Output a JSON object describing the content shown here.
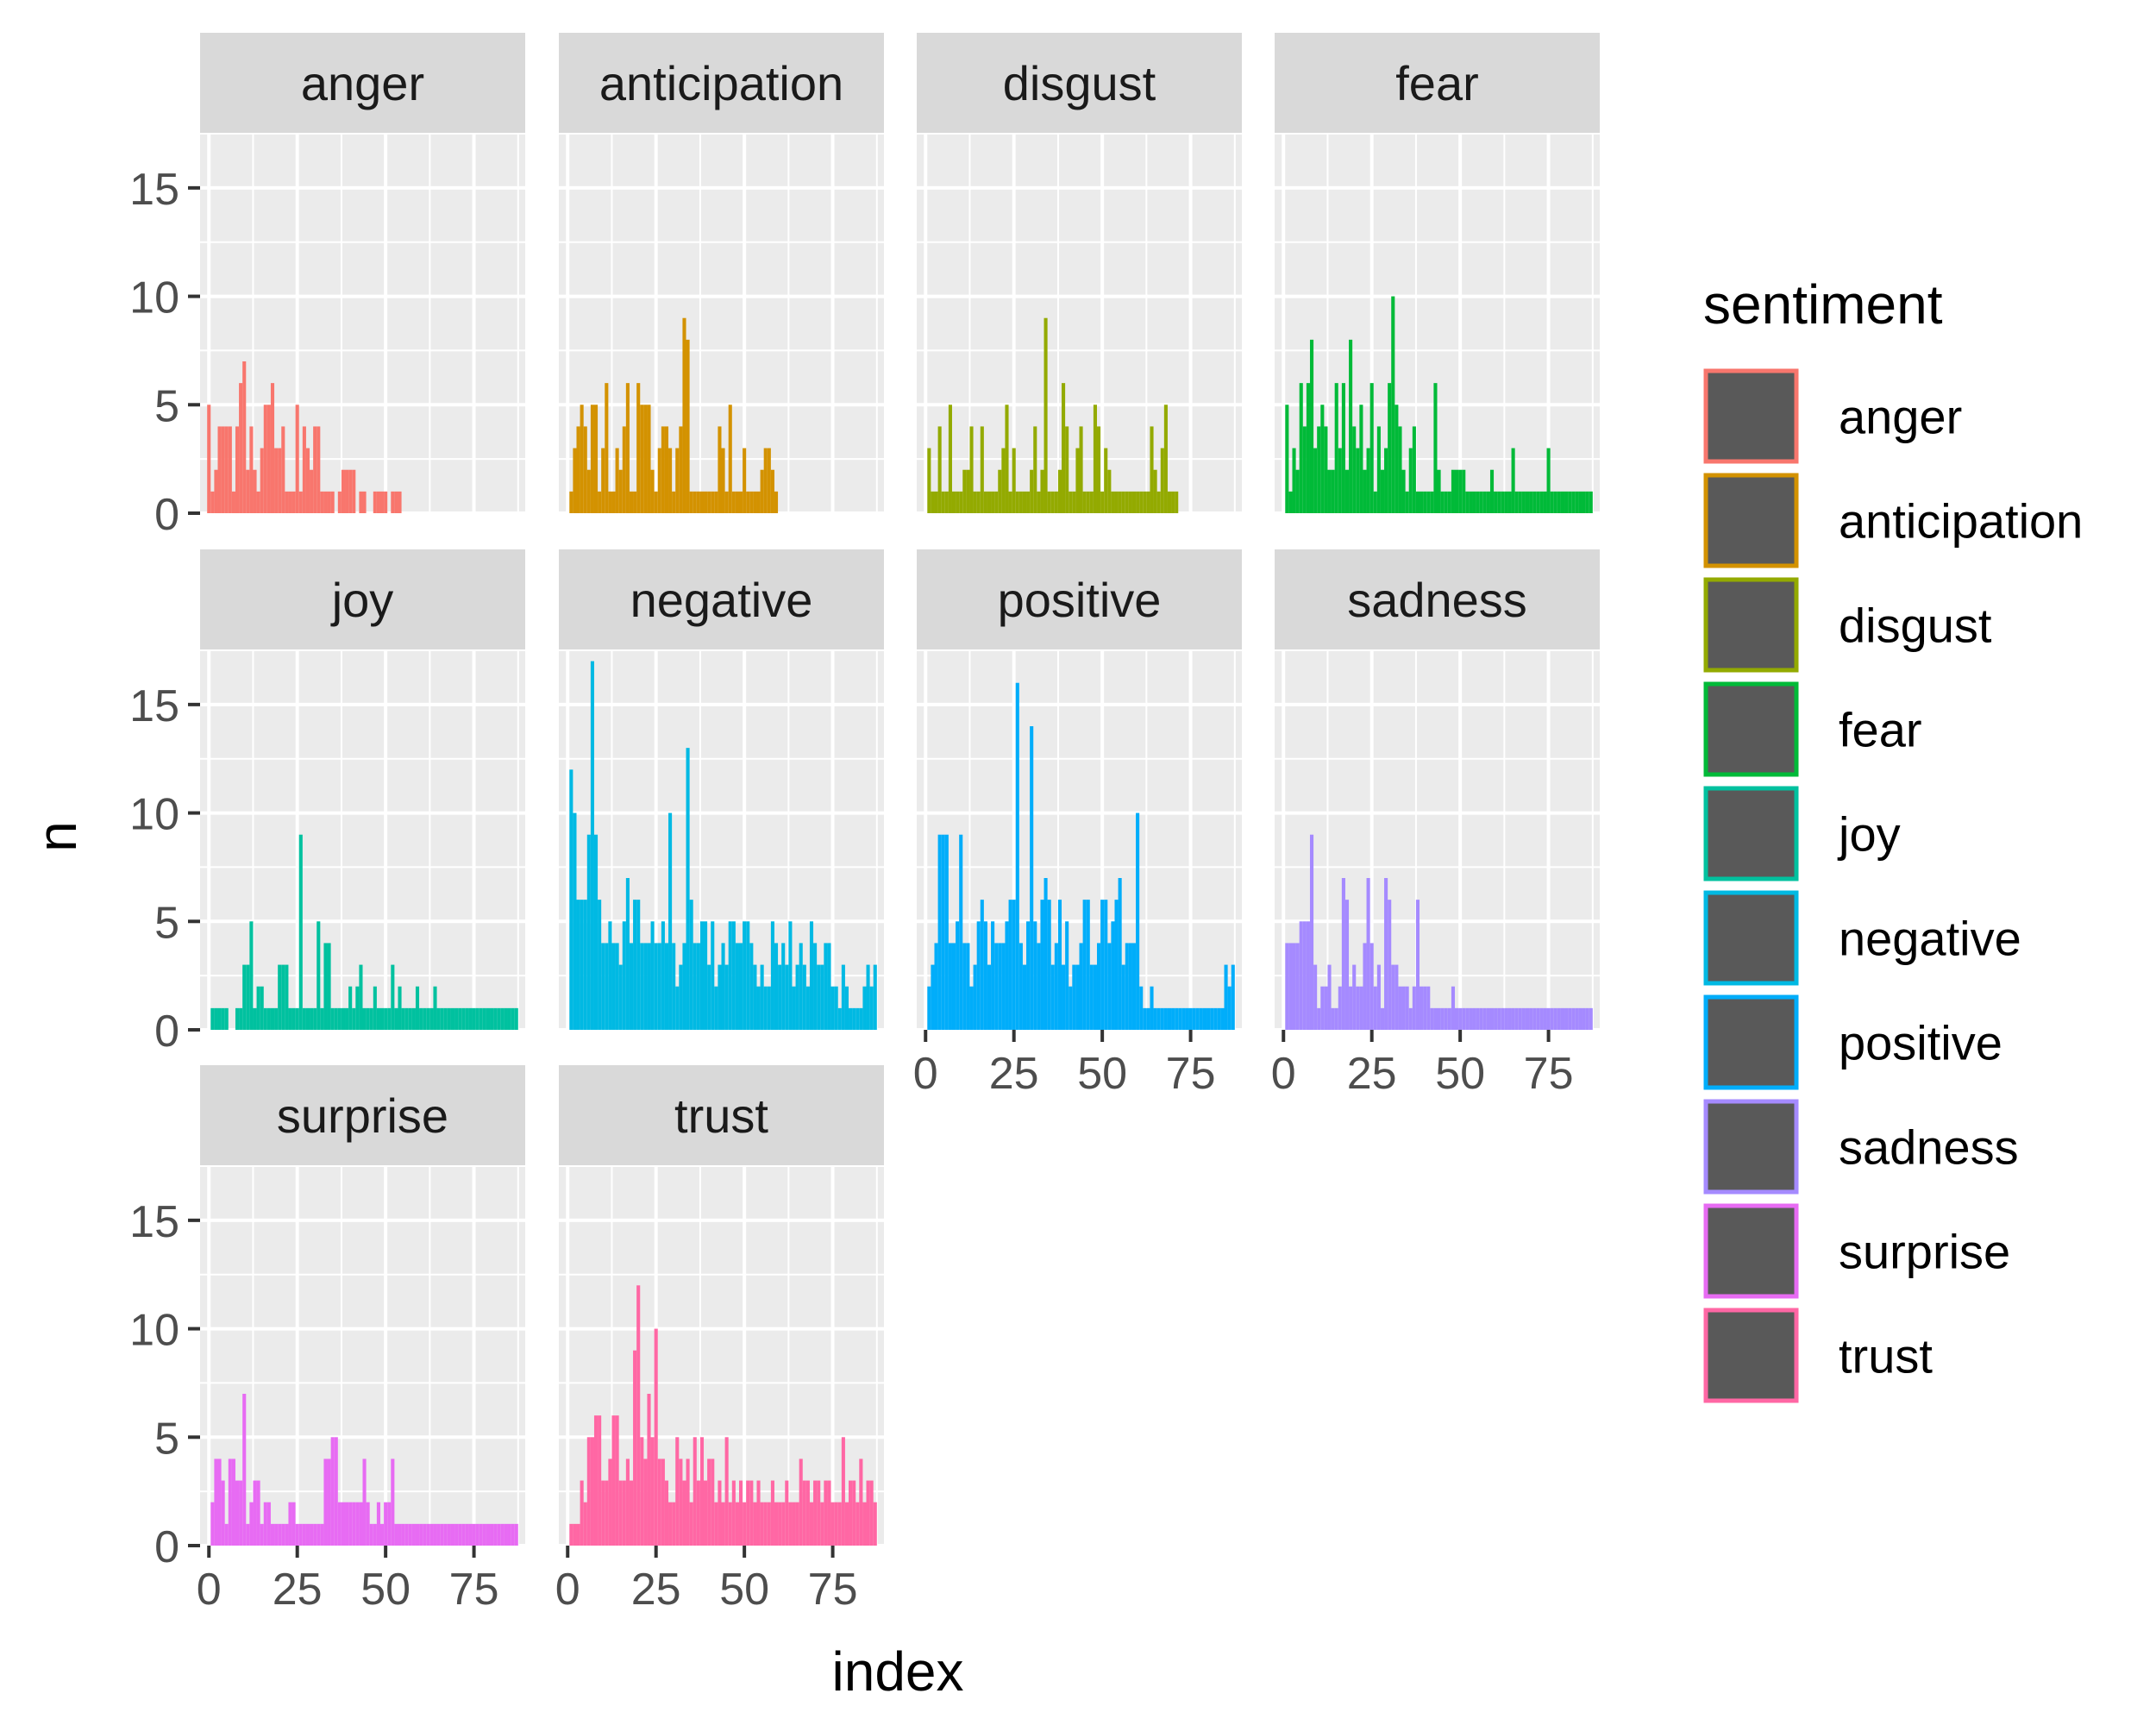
{
  "chart_data": {
    "type": "bar",
    "layout": "facet_wrap",
    "x_label": "index",
    "y_label": "n",
    "y_limits": [
      0,
      17.5
    ],
    "x_limits": [
      -2.5,
      89.5
    ],
    "y_ticks": [
      0,
      5,
      10,
      15
    ],
    "x_ticks": [
      0,
      25,
      50,
      75
    ],
    "legend": {
      "title": "sentiment",
      "position": "right",
      "fill": "#595959",
      "entries": [
        "anger",
        "anticipation",
        "disgust",
        "fear",
        "joy",
        "negative",
        "positive",
        "sadness",
        "surprise",
        "trust"
      ]
    },
    "panel_background": "#EBEBEB",
    "strip_background": "#D9D9D9",
    "gridlines": true,
    "series": [
      {
        "name": "anger",
        "color": "#F8766D",
        "values": [
          5,
          1,
          2,
          4,
          4,
          4,
          4,
          1,
          4,
          6,
          7,
          2,
          4,
          2,
          1,
          3,
          5,
          5,
          6,
          3,
          3,
          4,
          1,
          1,
          1,
          5,
          1,
          4,
          3,
          2,
          4,
          4,
          1,
          1,
          1,
          1,
          0,
          1,
          2,
          2,
          2,
          2,
          0,
          1,
          1,
          0,
          0,
          1,
          1,
          1,
          1,
          0,
          1,
          1,
          1,
          0,
          0,
          0,
          0,
          0,
          0,
          0,
          0,
          0,
          0,
          0,
          0,
          0,
          0,
          0,
          0,
          0,
          0,
          0,
          0,
          0,
          0,
          0,
          0,
          0,
          0,
          0,
          0,
          0,
          0,
          0,
          0,
          0
        ]
      },
      {
        "name": "anticipation",
        "color": "#D39200",
        "values": [
          0,
          1,
          3,
          4,
          5,
          4,
          2,
          5,
          5,
          1,
          3,
          6,
          1,
          1,
          3,
          2,
          4,
          6,
          1,
          1,
          6,
          5,
          5,
          5,
          2,
          1,
          3,
          4,
          4,
          3,
          1,
          3,
          4,
          9,
          8,
          1,
          1,
          1,
          1,
          1,
          1,
          1,
          1,
          4,
          3,
          1,
          5,
          1,
          1,
          1,
          3,
          1,
          1,
          1,
          1,
          2,
          3,
          3,
          2,
          1,
          0,
          0,
          0,
          0,
          0,
          0,
          0,
          0,
          0,
          0,
          0,
          0,
          0,
          0,
          0,
          0,
          0,
          0,
          0,
          0,
          0,
          0,
          0,
          0,
          0,
          0,
          0,
          0
        ]
      },
      {
        "name": "disgust",
        "color": "#93AA00",
        "values": [
          0,
          3,
          1,
          1,
          4,
          1,
          1,
          5,
          1,
          1,
          1,
          2,
          2,
          4,
          1,
          1,
          4,
          1,
          1,
          1,
          1,
          2,
          3,
          5,
          1,
          3,
          1,
          1,
          1,
          1,
          2,
          4,
          1,
          2,
          9,
          1,
          1,
          1,
          2,
          6,
          4,
          1,
          1,
          3,
          4,
          1,
          1,
          1,
          5,
          4,
          1,
          3,
          2,
          1,
          1,
          1,
          1,
          1,
          1,
          1,
          1,
          1,
          1,
          1,
          4,
          2,
          1,
          3,
          5,
          1,
          1,
          1,
          0,
          0,
          0,
          0,
          0,
          0,
          0,
          0,
          0,
          0,
          0,
          0,
          0,
          0,
          0,
          0
        ]
      },
      {
        "name": "fear",
        "color": "#00BA38",
        "values": [
          0,
          5,
          1,
          3,
          2,
          6,
          4,
          6,
          8,
          3,
          4,
          5,
          4,
          2,
          2,
          6,
          3,
          6,
          2,
          8,
          4,
          3,
          5,
          2,
          3,
          6,
          1,
          4,
          2,
          3,
          6,
          10,
          5,
          4,
          2,
          1,
          3,
          4,
          1,
          1,
          1,
          1,
          1,
          6,
          2,
          1,
          1,
          1,
          2,
          2,
          2,
          2,
          1,
          1,
          1,
          1,
          1,
          1,
          1,
          2,
          1,
          1,
          1,
          1,
          1,
          3,
          1,
          1,
          1,
          1,
          1,
          1,
          1,
          1,
          1,
          3,
          1,
          1,
          1,
          1,
          1,
          1,
          1,
          1,
          1,
          1,
          1,
          1
        ]
      },
      {
        "name": "joy",
        "color": "#00C19F",
        "values": [
          0,
          1,
          1,
          1,
          1,
          1,
          0,
          0,
          1,
          1,
          3,
          3,
          5,
          1,
          2,
          2,
          1,
          1,
          1,
          1,
          3,
          3,
          3,
          1,
          1,
          1,
          9,
          1,
          1,
          1,
          1,
          5,
          1,
          4,
          4,
          1,
          1,
          1,
          1,
          1,
          2,
          1,
          2,
          3,
          1,
          1,
          1,
          2,
          1,
          1,
          1,
          1,
          3,
          1,
          2,
          1,
          1,
          1,
          1,
          2,
          1,
          1,
          1,
          1,
          2,
          1,
          1,
          1,
          1,
          1,
          1,
          1,
          1,
          1,
          1,
          1,
          1,
          1,
          1,
          1,
          1,
          1,
          1,
          1,
          1,
          1,
          1,
          1
        ]
      },
      {
        "name": "negative",
        "color": "#00B9E3",
        "values": [
          0,
          12,
          10,
          6,
          6,
          6,
          9,
          17,
          9,
          6,
          4,
          4,
          5,
          4,
          4,
          3,
          5,
          7,
          4,
          6,
          6,
          4,
          4,
          4,
          5,
          4,
          4,
          5,
          4,
          10,
          4,
          2,
          3,
          4,
          13,
          6,
          4,
          4,
          5,
          5,
          3,
          5,
          2,
          3,
          4,
          3,
          5,
          5,
          4,
          4,
          5,
          5,
          4,
          3,
          2,
          3,
          2,
          2,
          5,
          4,
          3,
          4,
          3,
          5,
          2,
          3,
          4,
          3,
          2,
          5,
          4,
          3,
          3,
          4,
          4,
          2,
          2,
          1,
          3,
          2,
          1,
          1,
          1,
          1,
          2,
          3,
          2,
          3
        ]
      },
      {
        "name": "positive",
        "color": "#00ADFA",
        "values": [
          0,
          2,
          3,
          4,
          9,
          9,
          9,
          4,
          4,
          5,
          9,
          4,
          4,
          2,
          3,
          5,
          6,
          5,
          3,
          5,
          4,
          4,
          4,
          5,
          6,
          6,
          16,
          4,
          3,
          5,
          14,
          5,
          4,
          6,
          7,
          6,
          3,
          4,
          6,
          3,
          5,
          2,
          3,
          3,
          4,
          6,
          6,
          3,
          3,
          4,
          6,
          6,
          4,
          5,
          6,
          7,
          3,
          4,
          4,
          4,
          10,
          2,
          1,
          1,
          2,
          1,
          1,
          1,
          1,
          1,
          1,
          1,
          1,
          1,
          1,
          1,
          1,
          1,
          1,
          1,
          1,
          1,
          1,
          1,
          1,
          3,
          2,
          3
        ]
      },
      {
        "name": "sadness",
        "color": "#A58AFF",
        "values": [
          0,
          4,
          4,
          4,
          4,
          5,
          5,
          5,
          9,
          3,
          1,
          2,
          2,
          3,
          1,
          1,
          2,
          7,
          6,
          2,
          3,
          2,
          2,
          4,
          7,
          4,
          2,
          3,
          1,
          7,
          6,
          3,
          3,
          2,
          2,
          2,
          1,
          2,
          6,
          2,
          2,
          2,
          1,
          1,
          1,
          1,
          1,
          1,
          2,
          1,
          1,
          1,
          1,
          1,
          1,
          1,
          1,
          1,
          1,
          1,
          1,
          1,
          1,
          1,
          1,
          1,
          1,
          1,
          1,
          1,
          1,
          1,
          1,
          1,
          1,
          1,
          1,
          1,
          1,
          1,
          1,
          1,
          1,
          1,
          1,
          1,
          1,
          1
        ]
      },
      {
        "name": "surprise",
        "color": "#E76BF3",
        "values": [
          0,
          2,
          4,
          4,
          3,
          1,
          4,
          4,
          3,
          3,
          7,
          1,
          2,
          3,
          3,
          1,
          2,
          2,
          1,
          1,
          1,
          1,
          1,
          2,
          2,
          1,
          1,
          1,
          1,
          1,
          1,
          1,
          1,
          4,
          4,
          5,
          5,
          2,
          2,
          2,
          2,
          2,
          2,
          2,
          4,
          2,
          1,
          1,
          2,
          1,
          2,
          2,
          4,
          1,
          1,
          1,
          1,
          1,
          1,
          1,
          1,
          1,
          1,
          1,
          1,
          1,
          1,
          1,
          1,
          1,
          1,
          1,
          1,
          1,
          1,
          1,
          1,
          1,
          1,
          1,
          1,
          1,
          1,
          1,
          1,
          1,
          1,
          1
        ]
      },
      {
        "name": "trust",
        "color": "#FF67A4",
        "values": [
          0,
          1,
          1,
          1,
          3,
          2,
          5,
          5,
          6,
          6,
          3,
          3,
          4,
          6,
          6,
          3,
          3,
          4,
          3,
          9,
          12,
          5,
          4,
          7,
          5,
          10,
          4,
          4,
          3,
          2,
          2,
          5,
          4,
          3,
          4,
          2,
          5,
          3,
          5,
          3,
          4,
          4,
          2,
          3,
          2,
          5,
          2,
          3,
          2,
          3,
          2,
          3,
          3,
          2,
          3,
          2,
          2,
          2,
          3,
          2,
          2,
          2,
          3,
          2,
          2,
          2,
          4,
          3,
          3,
          2,
          3,
          3,
          2,
          3,
          3,
          2,
          2,
          2,
          5,
          2,
          3,
          3,
          2,
          4,
          2,
          3,
          3,
          2
        ]
      }
    ]
  }
}
